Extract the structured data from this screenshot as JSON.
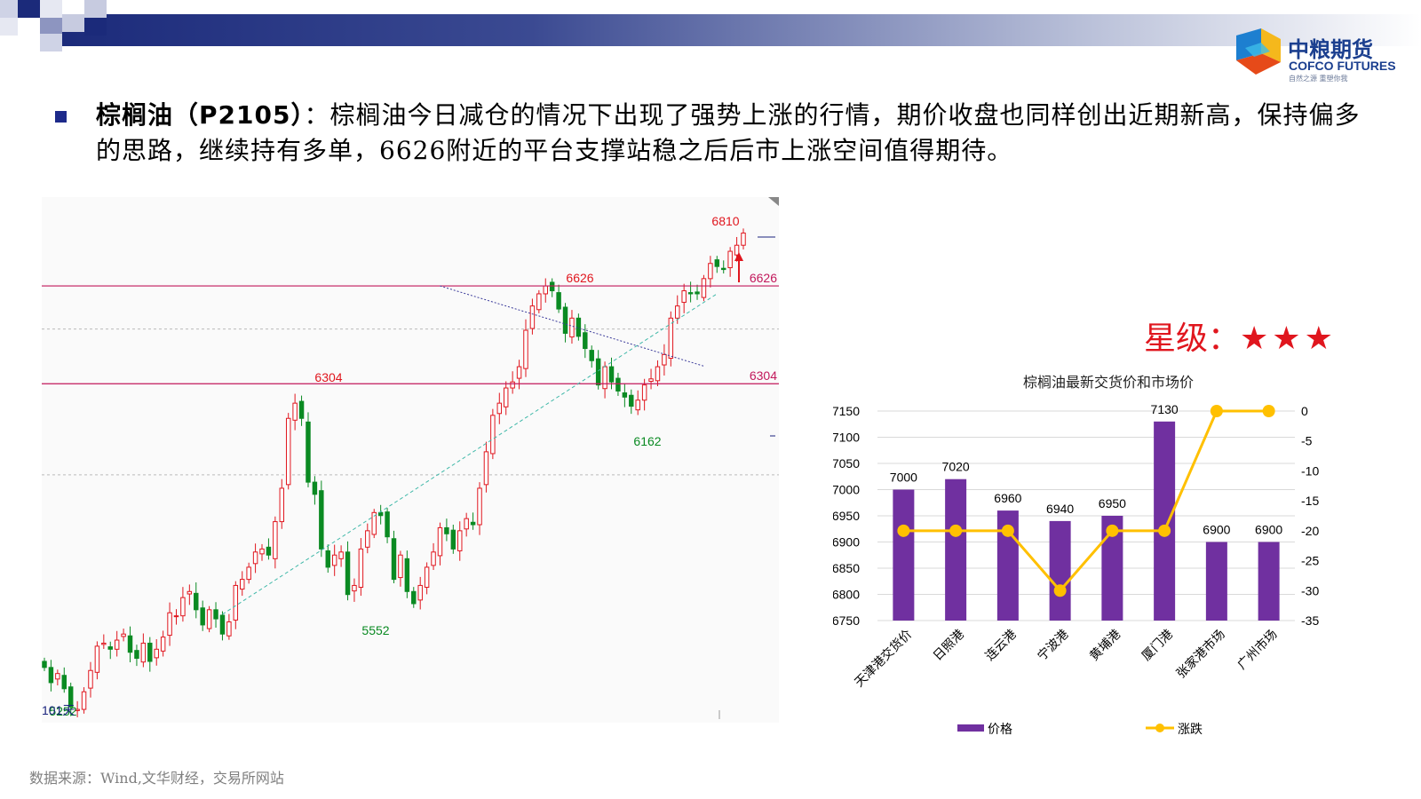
{
  "header": {
    "logo_cn": "中粮期货",
    "logo_en": "COFCO FUTURES",
    "logo_slogan": "自然之源 重塑你我"
  },
  "commentary": {
    "highlight": "棕榈油（P2105）",
    "text": "：棕榈油今日减仓的情况下出现了强势上涨的行情，期价收盘也同样创出近期新高，保持偏多的思路，继续持有多单，6626附近的平台支撑站稳之后后市上涨空间值得期待。"
  },
  "rating": {
    "label": "星级：",
    "stars": "★★★"
  },
  "source": {
    "text": "数据来源：Wind,文华财经，交易所网站"
  },
  "colors": {
    "up": "#e0161e",
    "down": "#0a8a22",
    "level_line": "#c2185b",
    "bar": "#7030a0",
    "line": "#ffc000",
    "header_dark": "#1b2a7a"
  },
  "chart_data": [
    {
      "type": "candlestick",
      "title": "",
      "period_label": "101天",
      "ylim": [
        5200,
        6860
      ],
      "horizontal_levels": [
        6626,
        6304
      ],
      "annotations": [
        {
          "label": "6810",
          "value": 6810,
          "color": "up"
        },
        {
          "label": "6626",
          "value": 6626,
          "color": "up"
        },
        {
          "label": "6304",
          "value": 6304,
          "color": "up"
        },
        {
          "label": "5552",
          "value": 5552,
          "color": "down"
        },
        {
          "label": "6162",
          "value": 6162,
          "color": "down"
        },
        {
          "label": "5252",
          "value": 5252,
          "color": "down"
        }
      ],
      "right_labels": [
        "6626",
        "6304"
      ],
      "trendlines": [
        {
          "from": {
            "bar": 60,
            "value": 6626
          },
          "to": {
            "bar": 100,
            "value": 6362
          },
          "style": "dotted",
          "color": "#3a3a9a"
        },
        {
          "from": {
            "bar": 27,
            "value": 5545
          },
          "to": {
            "bar": 102,
            "value": 6600
          },
          "style": "dashed",
          "color": "#3fb8a8"
        }
      ],
      "closes": [
        5370,
        5320,
        5350,
        5300,
        5240,
        5232,
        5290,
        5360,
        5440,
        5450,
        5430,
        5460,
        5480,
        5420,
        5400,
        5450,
        5390,
        5430,
        5470,
        5550,
        5540,
        5600,
        5620,
        5560,
        5510,
        5560,
        5530,
        5480,
        5520,
        5640,
        5660,
        5700,
        5750,
        5760,
        5740,
        5850,
        5960,
        6190,
        6240,
        6190,
        5980,
        5940,
        5760,
        5700,
        5740,
        5750,
        5610,
        5640,
        5760,
        5820,
        5880,
        5870,
        5800,
        5660,
        5740,
        5620,
        5580,
        5640,
        5700,
        5750,
        5830,
        5810,
        5760,
        5820,
        5860,
        5840,
        5960,
        6080,
        6200,
        6240,
        6290,
        6310,
        6360,
        6480,
        6560,
        6600,
        6626,
        6610,
        6550,
        6470,
        6520,
        6460,
        6420,
        6380,
        6300,
        6360,
        6310,
        6280,
        6260,
        6230,
        6250,
        6300,
        6320,
        6360,
        6400,
        6520,
        6560,
        6610,
        6600,
        6600,
        6650,
        6700,
        6690,
        6680,
        6740,
        6760,
        6800
      ],
      "y_unit": "元/吨"
    },
    {
      "type": "bar",
      "title": "棕榈油最新交货价和市场价",
      "categories": [
        "天津港交货价",
        "日照港",
        "连云港",
        "宁波港",
        "黄埔港",
        "厦门港",
        "张家港市场",
        "广州市场"
      ],
      "series": [
        {
          "name": "价格",
          "type": "bar",
          "axis": "left",
          "values": [
            7000,
            7020,
            6960,
            6940,
            6950,
            7130,
            6900,
            6900
          ]
        },
        {
          "name": "涨跌",
          "type": "line",
          "axis": "right",
          "values": [
            -20,
            -20,
            -20,
            -30,
            -20,
            -20,
            0,
            0
          ]
        }
      ],
      "ylim_left": [
        6750,
        7150
      ],
      "yticks_left": [
        6750,
        6800,
        6850,
        6900,
        6950,
        7000,
        7050,
        7100,
        7150
      ],
      "ylim_right": [
        -35,
        0
      ],
      "yticks_right": [
        0,
        -5,
        -10,
        -15,
        -20,
        -25,
        -30,
        -35
      ],
      "legend_position": "bottom",
      "grid": true
    }
  ]
}
